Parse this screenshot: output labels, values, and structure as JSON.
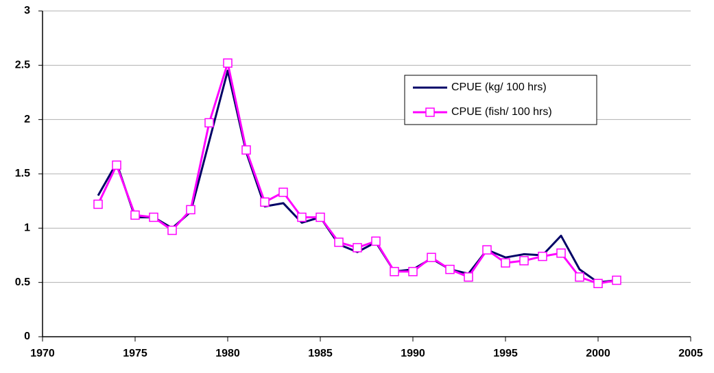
{
  "chart_data": {
    "type": "line",
    "x": [
      1973,
      1974,
      1975,
      1976,
      1977,
      1978,
      1979,
      1980,
      1981,
      1982,
      1983,
      1984,
      1985,
      1986,
      1987,
      1988,
      1989,
      1990,
      1991,
      1992,
      1993,
      1994,
      1995,
      1996,
      1997,
      1998,
      1999,
      2000,
      2001
    ],
    "series": [
      {
        "name": "CPUE (kg/ 100 hrs)",
        "color": "#000066",
        "marker": "none",
        "values": [
          1.3,
          1.6,
          1.1,
          1.1,
          1.0,
          1.15,
          1.8,
          2.45,
          1.7,
          1.2,
          1.23,
          1.05,
          1.1,
          0.85,
          0.78,
          0.87,
          0.6,
          0.62,
          0.72,
          0.62,
          0.58,
          0.8,
          0.73,
          0.76,
          0.75,
          0.93,
          0.62,
          0.5,
          0.52
        ]
      },
      {
        "name": "CPUE (fish/ 100 hrs)",
        "color": "#ff00ff",
        "marker": "square",
        "values": [
          1.22,
          1.58,
          1.12,
          1.1,
          0.98,
          1.17,
          1.97,
          2.52,
          1.72,
          1.24,
          1.33,
          1.1,
          1.1,
          0.87,
          0.82,
          0.88,
          0.6,
          0.6,
          0.73,
          0.62,
          0.55,
          0.8,
          0.68,
          0.7,
          0.74,
          0.77,
          0.55,
          0.49,
          0.52
        ]
      }
    ],
    "xlim": [
      1970,
      2005
    ],
    "xticks": [
      1970,
      1975,
      1980,
      1985,
      1990,
      1995,
      2000,
      2005
    ],
    "ylim": [
      0,
      3
    ],
    "yticks": [
      0,
      0.5,
      1,
      1.5,
      2,
      2.5,
      3
    ],
    "grid": true,
    "legend": "upper-right"
  }
}
